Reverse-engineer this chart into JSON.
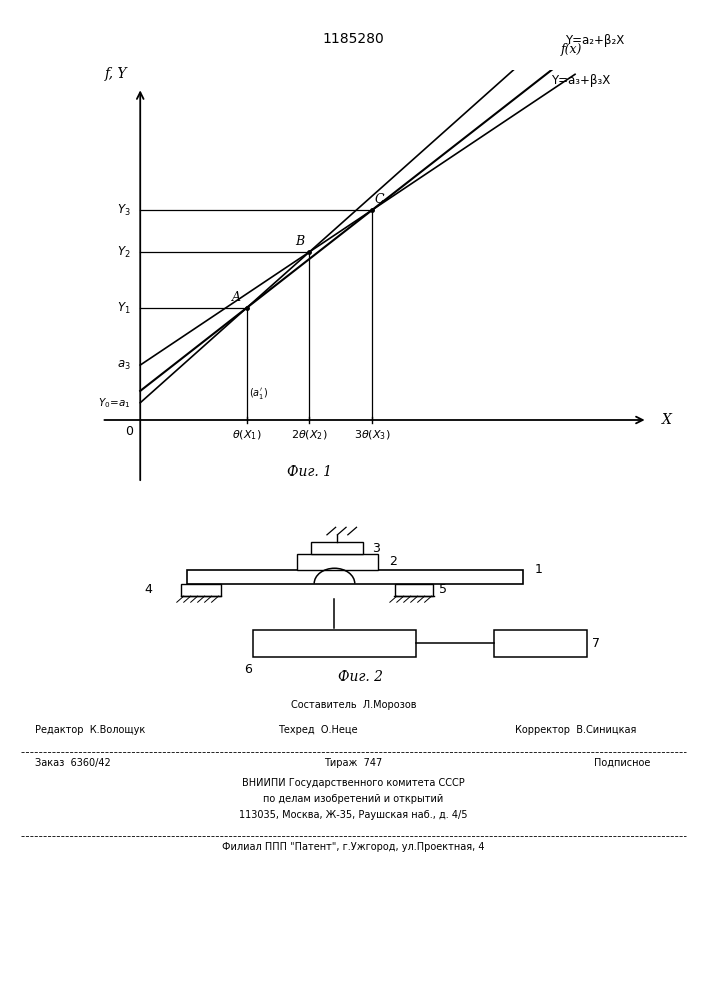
{
  "title": "1185280",
  "fig1_caption": "Фиг. 1",
  "fig2_caption": "Фиг. 2",
  "axis_ylabel": "f, Y",
  "axis_xlabel": "X",
  "label_fx": "f(x)",
  "label_line3": "Y=a₃+β₃X",
  "label_line2": "Y=a₂+β₂X",
  "footer_sostavitel": "Составитель  Л.Морозов",
  "footer_editor": "Редактор  К.Волощук",
  "footer_techred": "Техред  О.Неце",
  "footer_corrector": "Корректор  В.Синицкая",
  "footer_order": "Заказ  6360/42",
  "footer_tirazh": "Тираж  747",
  "footer_podpisnoe": "Подписное",
  "footer_vniip1": "ВНИИПИ Государственного комитета СССР",
  "footer_vniip2": "по делам изобретений и открытий",
  "footer_vniip3": "113035, Москва, Ж-35, Раушская наб., д. 4/5",
  "footer_filial": "Филиал ППП \"Патент\", г.Ужгород, ул.Проектная, 4"
}
